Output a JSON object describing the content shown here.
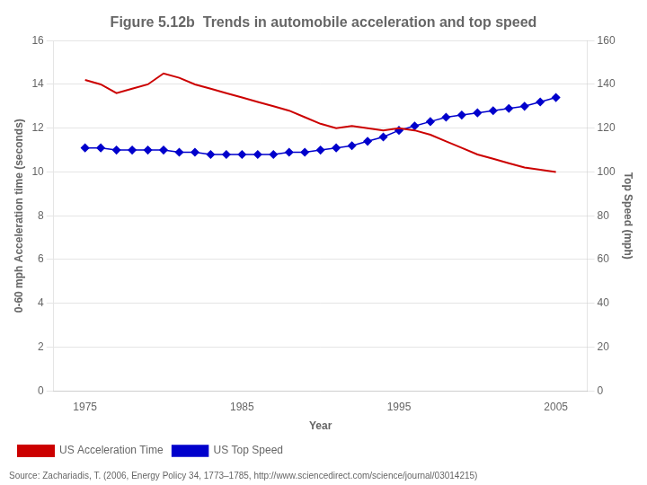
{
  "chart_data": {
    "type": "line",
    "title": "Figure 5.12b  Trends in automobile acceleration and top speed",
    "xlabel": "Year",
    "ylabel": "0-60 mph Acceleration time (seconds)",
    "y2label": "Top Speed (mph)",
    "annotations": [
      "Source: Zachariadis, T. (2006, Energy Policy 34, 1773–1785, http://www.sciencedirect.com/science/journal/03014215)"
    ],
    "x": [
      1975,
      1976,
      1977,
      1978,
      1979,
      1980,
      1981,
      1982,
      1983,
      1984,
      1985,
      1986,
      1987,
      1988,
      1989,
      1990,
      1991,
      1992,
      1993,
      1994,
      1995,
      1996,
      1997,
      1998,
      1999,
      2000,
      2001,
      2002,
      2003,
      2004,
      2005
    ],
    "xlim": [
      1973,
      2007
    ],
    "xticks": [
      1975,
      1985,
      1995,
      2005
    ],
    "ylim": [
      0,
      16
    ],
    "yticks": [
      0,
      2,
      4,
      6,
      8,
      10,
      12,
      14,
      16
    ],
    "y2lim": [
      0,
      160
    ],
    "y2ticks": [
      0,
      20,
      40,
      60,
      80,
      100,
      120,
      140,
      160
    ],
    "grid": true,
    "legend": "lower left",
    "series": [
      {
        "name": "US Acceleration Time",
        "color": "#CC0000",
        "marker": "none",
        "values": [
          14.2,
          14.0,
          13.6,
          13.8,
          14.0,
          14.5,
          14.3,
          14.0,
          13.8,
          13.6,
          13.4,
          13.2,
          13.0,
          12.8,
          12.5,
          12.2,
          12.0,
          12.1,
          12.0,
          11.9,
          12.0,
          11.9,
          11.7,
          11.4,
          11.1,
          10.8,
          10.6,
          10.4,
          10.2,
          10.1,
          10.0
        ]
      },
      {
        "name": "US Top Speed",
        "color": "#0000CC",
        "marker": "diamond",
        "axis": "y2",
        "values": [
          111,
          111,
          110,
          110,
          110,
          110,
          109,
          109,
          108,
          108,
          108,
          108,
          108,
          109,
          109,
          110,
          111,
          112,
          114,
          116,
          119,
          121,
          123,
          125,
          126,
          127,
          128,
          129,
          130,
          132,
          134
        ]
      }
    ]
  }
}
